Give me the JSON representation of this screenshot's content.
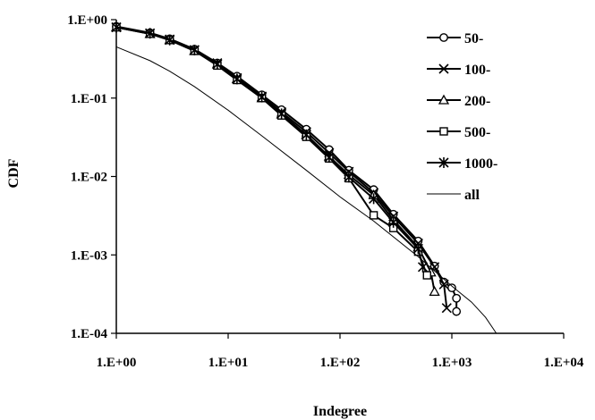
{
  "chart_data": {
    "type": "line",
    "title": "",
    "xlabel": "Indegree",
    "ylabel": "CDF",
    "x_scale": "log",
    "y_scale": "log",
    "xlim": [
      1,
      10000
    ],
    "ylim": [
      0.0001,
      1
    ],
    "x_ticks": [
      {
        "value": 1,
        "label": "1.E+00"
      },
      {
        "value": 10,
        "label": "1.E+01"
      },
      {
        "value": 100,
        "label": "1.E+02"
      },
      {
        "value": 1000,
        "label": "1.E+03"
      },
      {
        "value": 10000,
        "label": "1.E+04"
      }
    ],
    "y_ticks": [
      {
        "value": 1,
        "label": "1.E+00"
      },
      {
        "value": 0.1,
        "label": "1.E-01"
      },
      {
        "value": 0.01,
        "label": "1.E-02"
      },
      {
        "value": 0.001,
        "label": "1.E-03"
      },
      {
        "value": 0.0001,
        "label": "1.E-04"
      }
    ],
    "grid": false,
    "legend_position": "right",
    "series": [
      {
        "name": "50-",
        "marker": "circle",
        "x": [
          1,
          2,
          3,
          5,
          8,
          12,
          20,
          30,
          50,
          80,
          120,
          200,
          300,
          500,
          700,
          850,
          1000,
          1100,
          1100
        ],
        "y": [
          0.82,
          0.68,
          0.57,
          0.42,
          0.28,
          0.19,
          0.11,
          0.071,
          0.04,
          0.022,
          0.012,
          0.0068,
          0.0033,
          0.0015,
          0.00072,
          0.00045,
          0.00038,
          0.00028,
          0.00019
        ]
      },
      {
        "name": "100-",
        "marker": "x",
        "x": [
          1,
          2,
          3,
          5,
          8,
          12,
          20,
          30,
          50,
          80,
          120,
          200,
          300,
          500,
          700,
          850,
          900
        ],
        "y": [
          0.8,
          0.67,
          0.56,
          0.41,
          0.28,
          0.18,
          0.105,
          0.066,
          0.037,
          0.02,
          0.0115,
          0.0062,
          0.0031,
          0.0014,
          0.0007,
          0.00042,
          0.00021
        ]
      },
      {
        "name": "200-",
        "marker": "triangle",
        "x": [
          1,
          2,
          3,
          5,
          8,
          12,
          20,
          30,
          50,
          80,
          120,
          200,
          300,
          500,
          650,
          700
        ],
        "y": [
          0.8,
          0.66,
          0.55,
          0.4,
          0.27,
          0.175,
          0.1,
          0.062,
          0.034,
          0.018,
          0.0105,
          0.0058,
          0.0028,
          0.00125,
          0.0006,
          0.00034
        ]
      },
      {
        "name": "500-",
        "marker": "square",
        "x": [
          1,
          2,
          3,
          5,
          8,
          12,
          20,
          30,
          50,
          80,
          120,
          200,
          300,
          500,
          600
        ],
        "y": [
          0.8,
          0.66,
          0.55,
          0.4,
          0.26,
          0.17,
          0.1,
          0.06,
          0.032,
          0.017,
          0.0095,
          0.0032,
          0.0022,
          0.0011,
          0.00055
        ]
      },
      {
        "name": "1000-",
        "marker": "star",
        "x": [
          1,
          2,
          3,
          5,
          8,
          12,
          20,
          30,
          50,
          80,
          120,
          200,
          300,
          500,
          550
        ],
        "y": [
          0.8,
          0.67,
          0.55,
          0.41,
          0.27,
          0.175,
          0.103,
          0.063,
          0.034,
          0.0175,
          0.0098,
          0.0052,
          0.0026,
          0.0012,
          0.0007
        ]
      },
      {
        "name": "all",
        "marker": "none",
        "x": [
          1,
          2,
          3,
          5,
          10,
          20,
          50,
          100,
          200,
          500,
          1000,
          1500,
          2000,
          2500
        ],
        "y": [
          0.45,
          0.3,
          0.22,
          0.14,
          0.07,
          0.033,
          0.012,
          0.0055,
          0.0027,
          0.00095,
          0.0004,
          0.00025,
          0.00016,
          0.0001
        ]
      }
    ]
  }
}
